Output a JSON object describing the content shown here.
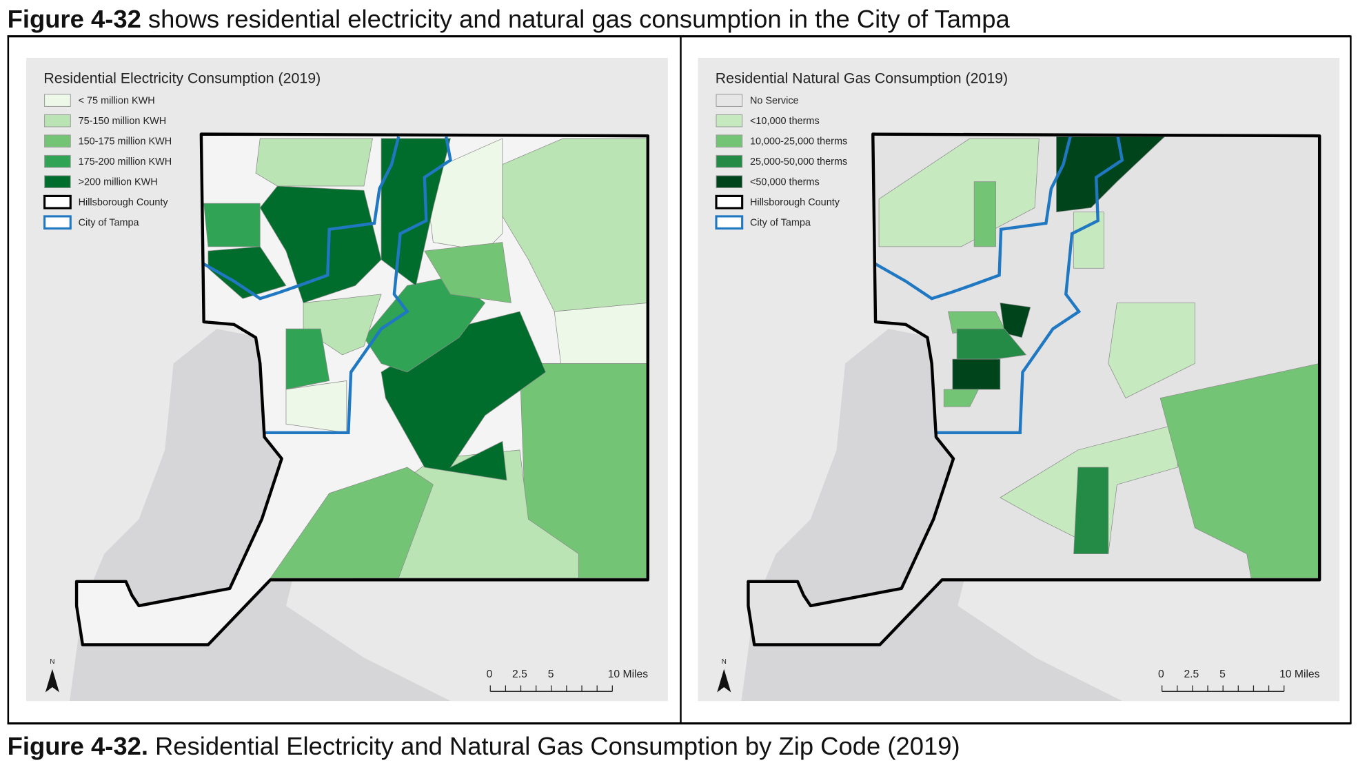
{
  "header": {
    "figure_label": "Figure 4-32",
    "text": "shows residential electricity and natural gas consumption in the City of Tampa"
  },
  "maps": [
    {
      "title": "Residential Electricity Consumption (2019)",
      "legend": [
        {
          "label": "< 75 million KWH",
          "color": "#edf8e9"
        },
        {
          "label": "75-150 million KWH",
          "color": "#bae4b3"
        },
        {
          "label": "150-175 million KWH",
          "color": "#74c476"
        },
        {
          "label": "175-200 million KWH",
          "color": "#31a354"
        },
        {
          "label": ">200 million KWH",
          "color": "#006d2c"
        },
        {
          "label": "Hillsborough County",
          "color": "#ffffff",
          "stroke": "#000000"
        },
        {
          "label": "City of Tampa",
          "color": "#ffffff",
          "stroke": "#1f78c1"
        }
      ],
      "north": "N",
      "scale": [
        "0",
        "2.5",
        "5",
        "10 Miles"
      ]
    },
    {
      "title": "Residential Natural Gas Consumption (2019)",
      "legend": [
        {
          "label": "No Service",
          "color": "#e6e6e6"
        },
        {
          "label": "<10,000 therms",
          "color": "#c7e9c0"
        },
        {
          "label": "10,000-25,000 therms",
          "color": "#74c476"
        },
        {
          "label": "25,000-50,000 therms",
          "color": "#238b45"
        },
        {
          "label": "<50,000 therms",
          "color": "#00441b"
        },
        {
          "label": "Hillsborough County",
          "color": "#ffffff",
          "stroke": "#000000"
        },
        {
          "label": "City of Tampa",
          "color": "#ffffff",
          "stroke": "#1f78c1"
        }
      ],
      "north": "N",
      "scale": [
        "0",
        "2.5",
        "5",
        "10 Miles"
      ]
    }
  ],
  "caption": {
    "figure_label": "Figure 4-32.",
    "text": "Residential Electricity and Natural Gas Consumption by Zip Code (2019)"
  }
}
